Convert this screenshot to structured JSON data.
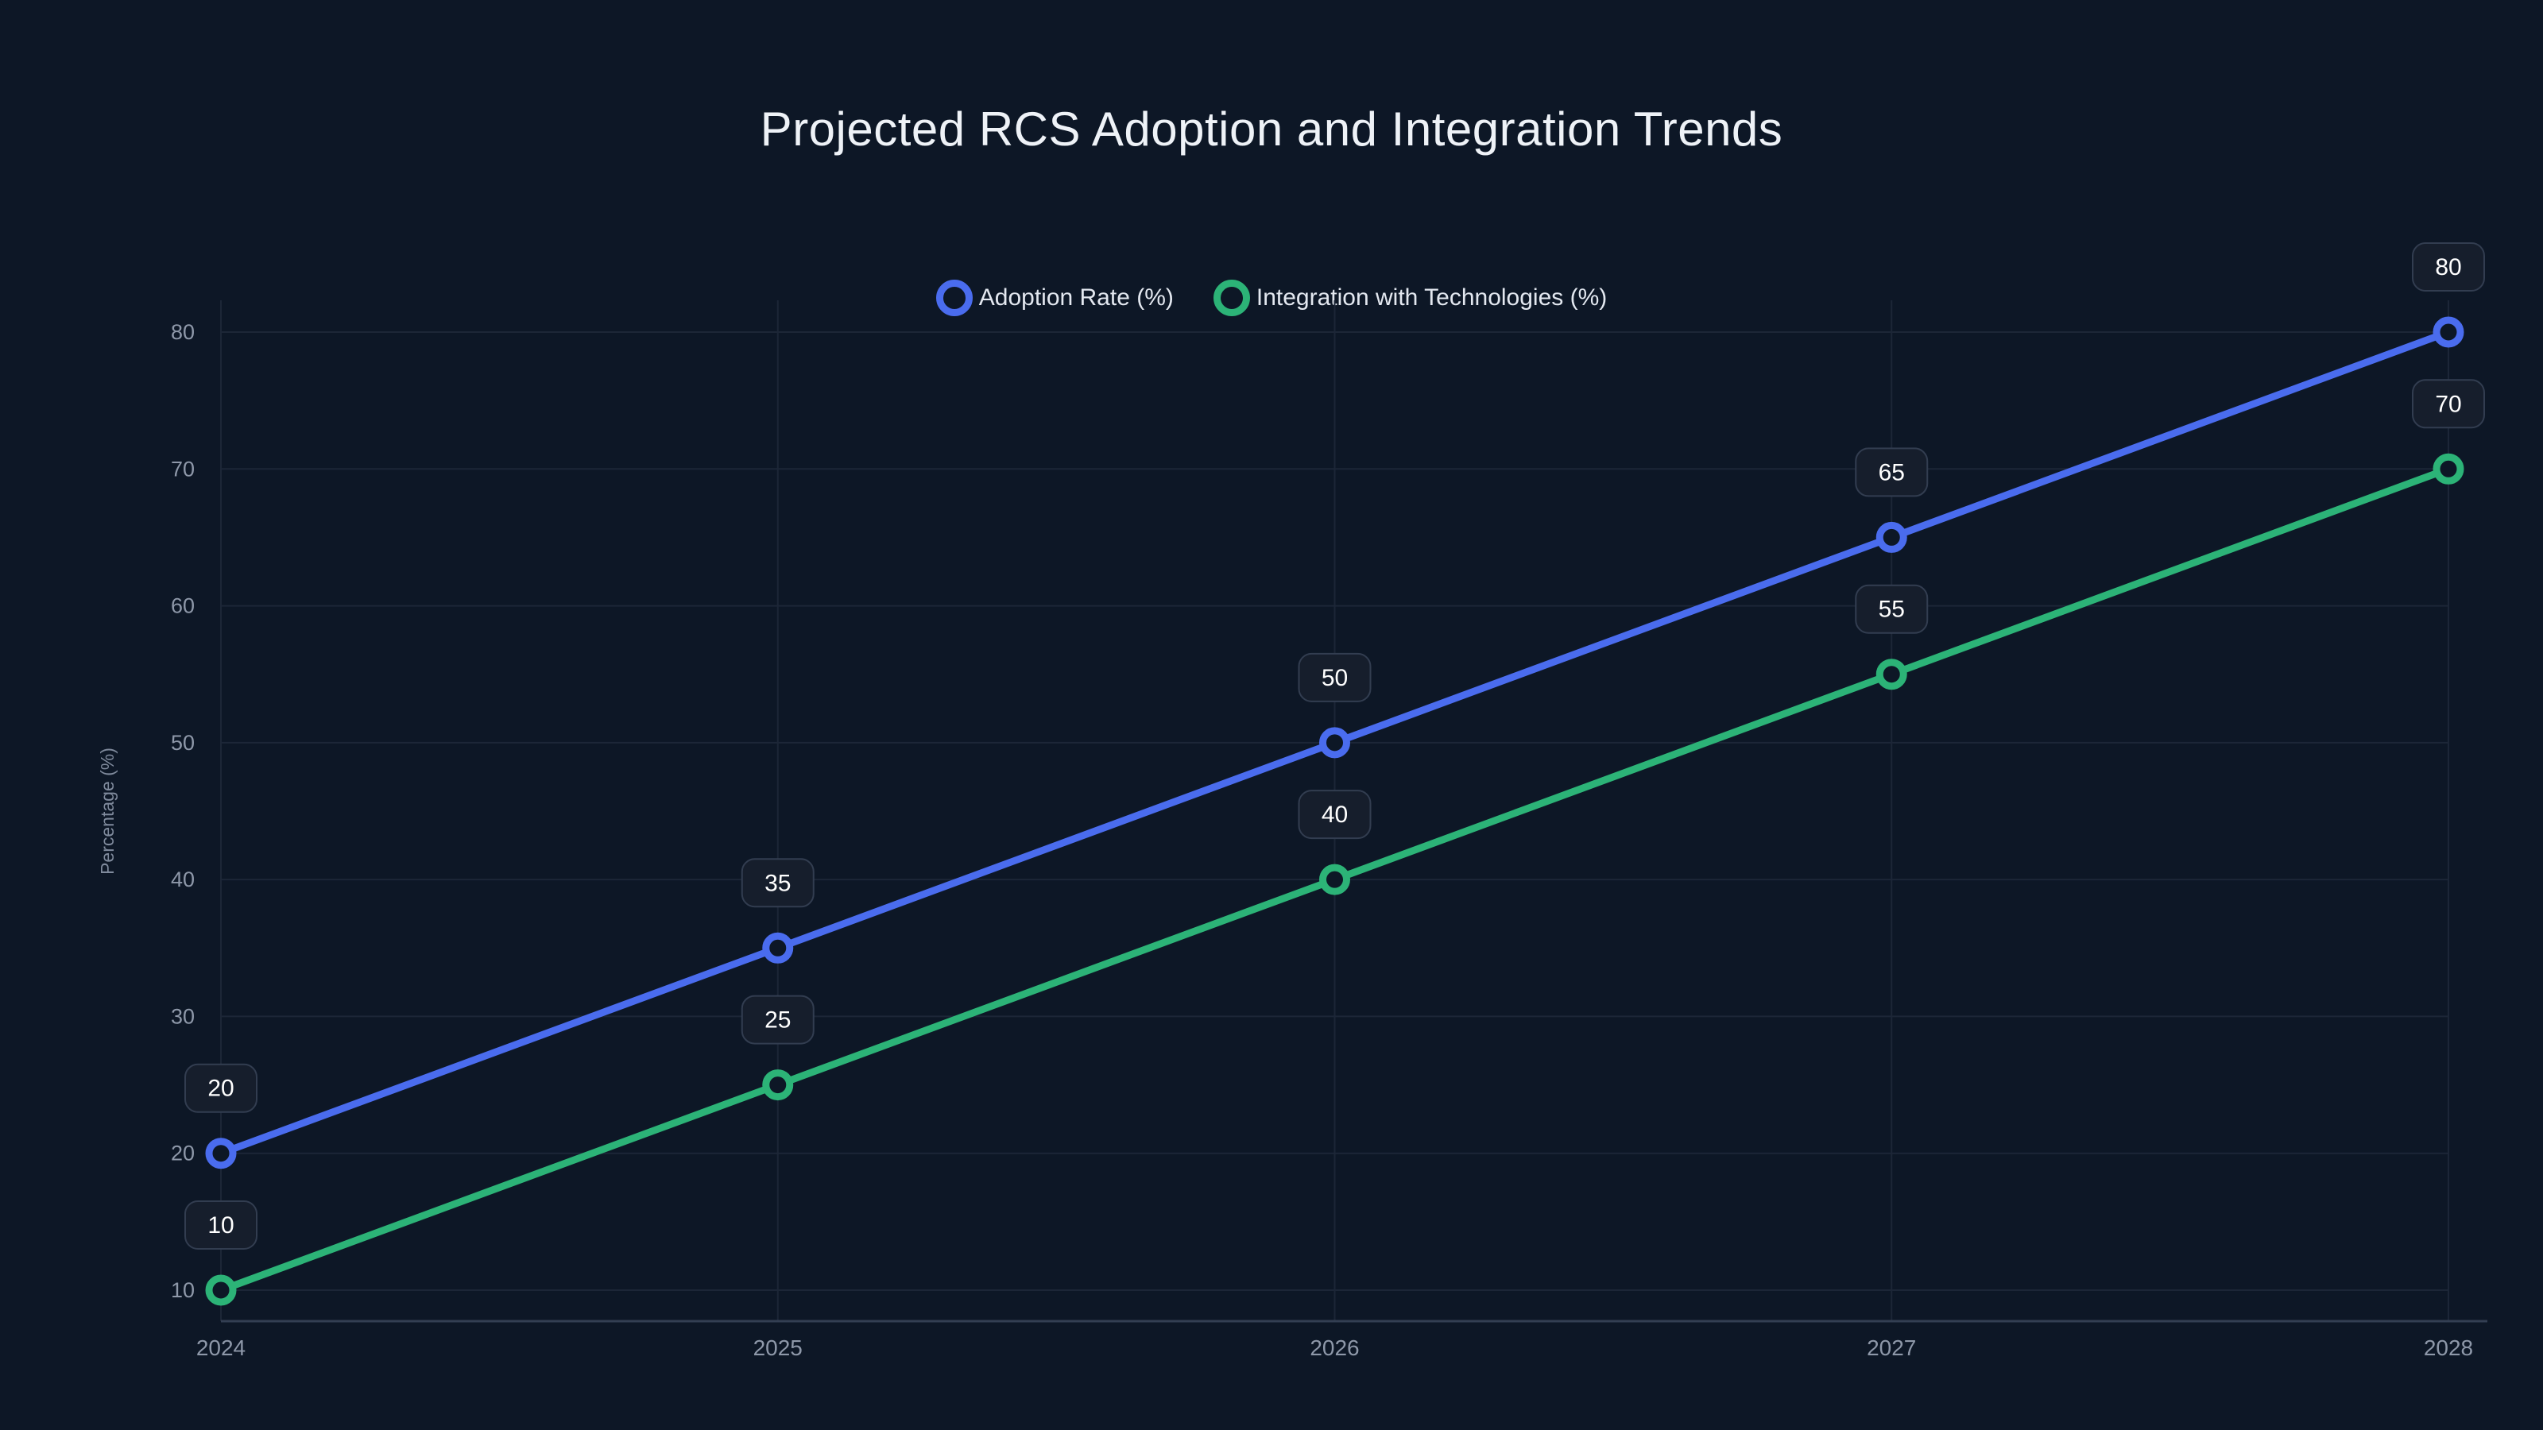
{
  "colors": {
    "background": "#0d1726",
    "grid": "#1c2637",
    "axis_line": "#333f53",
    "tick_text": "#8e98a9",
    "axis_title_text": "#7f8a9c",
    "title_text": "#eef2f7",
    "legend_text": "#e3e8f0",
    "badge_bg": "#161e2c",
    "badge_border": "#323d50",
    "badge_text": "#ffffff",
    "series_adoption": "#4a6cee",
    "series_integration": "#2cb377"
  },
  "chart_data": {
    "type": "line",
    "title": "Projected RCS Adoption and Integration Trends",
    "categories": [
      "2024",
      "2025",
      "2026",
      "2027",
      "2028"
    ],
    "series": [
      {
        "name": "Adoption Rate (%)",
        "color": "#4a6cee",
        "values": [
          20,
          35,
          50,
          65,
          80
        ]
      },
      {
        "name": "Integration with Technologies (%)",
        "color": "#2cb377",
        "values": [
          10,
          25,
          40,
          55,
          70
        ]
      }
    ],
    "xlabel": "",
    "ylabel": "Percentage (%)",
    "ylim": [
      10,
      80
    ],
    "yticks": [
      10,
      20,
      30,
      40,
      50,
      60,
      70,
      80
    ],
    "grid": true,
    "legend_position": "top-center",
    "point_labels": true,
    "marker_style": "open-circle"
  }
}
